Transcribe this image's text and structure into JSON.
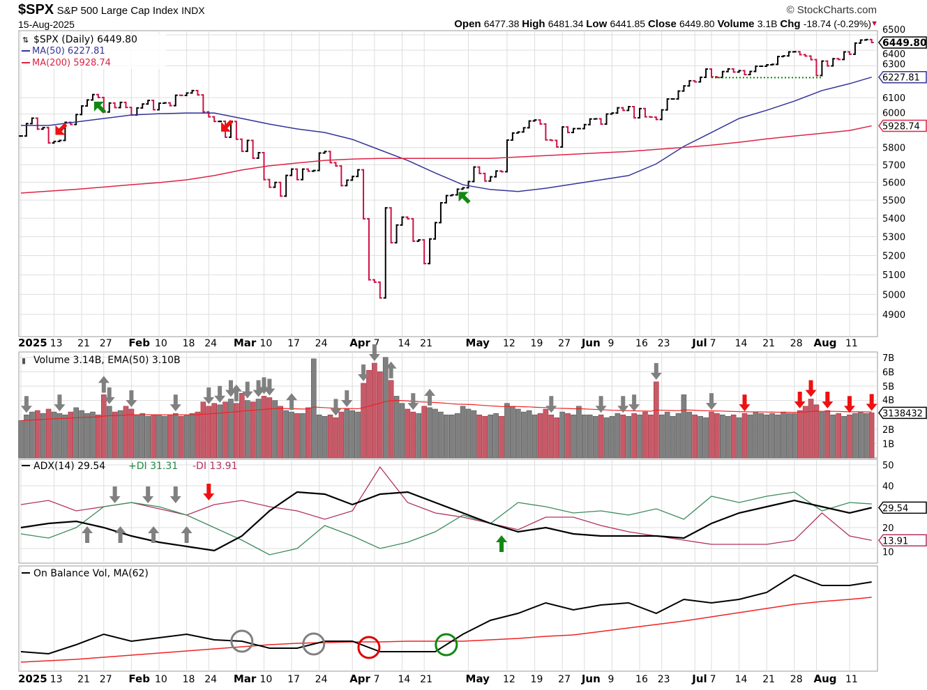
{
  "header": {
    "symbol": "$SPX",
    "name": "S&P 500 Large Cap Index",
    "exchange": "INDX",
    "date": "15-Aug-2025",
    "ohlc_labels": [
      "Open",
      "High",
      "Low",
      "Close",
      "Volume",
      "Chg"
    ],
    "ohlc_values": [
      "6477.38",
      "6481.34",
      "6441.85",
      "6449.80",
      "3.1B",
      "-18.74 (-0.29%)"
    ],
    "copyright": "© StockCharts.com",
    "chg_color": "#cc0033"
  },
  "legend": {
    "price": "$SPX (Daily) 6449.80",
    "ma50": "MA(50) 6227.81",
    "ma200": "MA(200) 5928.74",
    "volume": "Volume 3.14B, EMA(50) 3.10B",
    "adx": "ADX(14) 29.54",
    "pdi": "+DI 31.31",
    "mdi": "-DI 13.91",
    "obv": "On Balance Vol, MA(62)"
  },
  "tags": {
    "price": "6449.80",
    "ma50": "6227.81",
    "ma200": "5928.74",
    "volume": "3138432",
    "adx": "29.54",
    "mdi": "13.91"
  },
  "colors": {
    "up": "#000000",
    "down": "#cc1144",
    "ma50": "#33339a",
    "ma200": "#dd2244",
    "vol_up": "#808080",
    "vol_down": "#c85a68",
    "adx": "#000000",
    "pdi": "#3a8a5a",
    "mdi": "#b03060",
    "obv": "#000000",
    "obv_ma": "#ee2222",
    "support": "#008800"
  },
  "chart_data": [
    {
      "type": "ohlc",
      "title": "$SPX (Daily)",
      "scale": "log",
      "ylim": [
        4850,
        6550
      ],
      "grid": true,
      "yticks": [
        6500,
        6400,
        6300,
        6100,
        6000,
        5800,
        5700,
        5600,
        5500,
        5400,
        5300,
        5200,
        5100,
        5000,
        4900
      ],
      "trading_days": {
        "01": [
          2,
          3,
          6,
          7,
          8,
          10,
          13,
          14,
          15,
          16,
          17,
          21,
          22,
          23,
          24,
          27,
          28,
          29,
          30,
          31
        ],
        "02": [
          3,
          4,
          5,
          6,
          7,
          10,
          11,
          12,
          13,
          14,
          18,
          19,
          20,
          21,
          24,
          25,
          26,
          27,
          28
        ],
        "03": [
          3,
          4,
          5,
          6,
          7,
          10,
          11,
          12,
          13,
          14,
          17,
          18,
          19,
          20,
          21,
          24,
          25,
          26,
          27,
          28,
          31
        ],
        "04": [
          1,
          2,
          3,
          4,
          7,
          8,
          9,
          10,
          11,
          14,
          15,
          16,
          17,
          21,
          22,
          23,
          24,
          25,
          28,
          29,
          30
        ],
        "05": [
          1,
          2,
          5,
          6,
          7,
          8,
          9,
          12,
          13,
          14,
          15,
          16,
          19,
          20,
          21,
          22,
          23,
          27,
          28,
          29,
          30
        ],
        "06": [
          2,
          3,
          4,
          5,
          6,
          9,
          10,
          11,
          12,
          13,
          16,
          17,
          18,
          20,
          23,
          24,
          25,
          26,
          27,
          30
        ],
        "07": [
          1,
          2,
          3,
          7,
          8,
          9,
          10,
          11,
          14,
          15,
          16,
          17,
          18,
          21,
          22,
          23,
          24,
          25,
          28,
          29,
          30,
          31
        ],
        "08": [
          1,
          4,
          5,
          6,
          7,
          8,
          11,
          12,
          13,
          14,
          15
        ]
      },
      "close": [
        5868,
        5942,
        5975,
        5909,
        5918,
        5827,
        5836,
        5842,
        5950,
        5937,
        5997,
        6049,
        6086,
        6119,
        6101,
        6012,
        6067,
        6039,
        6071,
        6040,
        5994,
        6037,
        6061,
        6083,
        6026,
        6066,
        6068,
        6051,
        6115,
        6114,
        6129,
        6144,
        6117,
        6013,
        5983,
        5955,
        5956,
        5861,
        5955,
        5849,
        5778,
        5842,
        5738,
        5770,
        5615,
        5572,
        5599,
        5522,
        5639,
        5675,
        5615,
        5675,
        5663,
        5667,
        5768,
        5777,
        5712,
        5693,
        5581,
        5612,
        5633,
        5671,
        5397,
        5074,
        5062,
        4982,
        5457,
        5268,
        5363,
        5406,
        5397,
        5276,
        5283,
        5158,
        5288,
        5376,
        5485,
        5525,
        5529,
        5561,
        5569,
        5604,
        5687,
        5650,
        5607,
        5631,
        5664,
        5660,
        5844,
        5886,
        5892,
        5917,
        5958,
        5964,
        5940,
        5845,
        5842,
        5803,
        5922,
        5889,
        5912,
        5912,
        5936,
        5970,
        5971,
        5939,
        6000,
        6006,
        6038,
        6022,
        6045,
        5977,
        6033,
        5983,
        5981,
        5967,
        6025,
        6092,
        6092,
        6141,
        6173,
        6205,
        6198,
        6227,
        6279,
        6230,
        6226,
        6263,
        6280,
        6260,
        6269,
        6244,
        6264,
        6297,
        6297,
        6306,
        6309,
        6359,
        6363,
        6389,
        6390,
        6371,
        6362,
        6339,
        6238,
        6330,
        6299,
        6345,
        6340,
        6389,
        6374,
        6446,
        6466,
        6469,
        6449.8
      ],
      "ma50_sampled": [
        5931,
        5931,
        5952,
        5973,
        5994,
        6002,
        6006,
        6006,
        5973,
        5939,
        5910,
        5889,
        5848,
        5786,
        5725,
        5653,
        5586,
        5559,
        5548,
        5566,
        5590,
        5614,
        5638,
        5705,
        5807,
        5889,
        5973,
        6023,
        6079,
        6144,
        6187,
        6227.81
      ],
      "ma200_sampled": [
        5539,
        5550,
        5560,
        5573,
        5586,
        5598,
        5614,
        5638,
        5670,
        5694,
        5710,
        5725,
        5733,
        5737,
        5737,
        5737,
        5737,
        5737,
        5745,
        5753,
        5761,
        5769,
        5777,
        5789,
        5801,
        5814,
        5831,
        5851,
        5868,
        5884,
        5901,
        5928.74
      ],
      "support_line": {
        "from": "07-07",
        "to": "08-04",
        "value": 6225
      },
      "arrows": [
        {
          "date": "01-14",
          "color": "red",
          "dir": "down-left"
        },
        {
          "date": "01-24",
          "color": "green",
          "dir": "up-left"
        },
        {
          "date": "02-27",
          "color": "red",
          "dir": "down-left"
        },
        {
          "date": "04-30",
          "color": "green",
          "dir": "up-left"
        }
      ]
    },
    {
      "type": "bar",
      "title": "Volume",
      "unit": "B",
      "yticks": [
        {
          "v": 7,
          "l": "7B"
        },
        {
          "v": 6,
          "l": "6B"
        },
        {
          "v": 5,
          "l": "5B"
        },
        {
          "v": 4,
          "l": "4B"
        },
        {
          "v": 2,
          "l": "2B"
        },
        {
          "v": 1,
          "l": "1B"
        }
      ],
      "values": [
        2.6,
        3.0,
        3.2,
        3.3,
        3.1,
        3.4,
        3.2,
        3.1,
        3.0,
        3.2,
        3.5,
        3.3,
        3.1,
        3.2,
        3.0,
        4.4,
        3.6,
        3.2,
        3.3,
        3.6,
        3.4,
        3.0,
        3.1,
        2.9,
        3.0,
        3.0,
        2.9,
        3.0,
        3.1,
        2.9,
        3.0,
        3.1,
        3.2,
        3.9,
        3.6,
        3.8,
        3.7,
        3.9,
        4.1,
        3.8,
        4.5,
        4.0,
        3.9,
        4.1,
        4.3,
        4.2,
        4.0,
        3.6,
        3.3,
        3.2,
        3.1,
        3.1,
        3.5,
        6.9,
        3.0,
        2.9,
        3.0,
        2.8,
        3.2,
        3.4,
        3.3,
        3.2,
        5.2,
        6.1,
        6.6,
        6.0,
        7.0,
        5.4,
        4.3,
        3.8,
        3.4,
        3.2,
        3.1,
        3.6,
        3.5,
        3.4,
        3.2,
        3.0,
        3.0,
        3.1,
        3.6,
        3.4,
        3.3,
        3.0,
        2.9,
        3.0,
        3.1,
        2.9,
        3.8,
        3.6,
        3.4,
        3.2,
        3.3,
        3.0,
        3.1,
        3.4,
        3.0,
        2.8,
        3.2,
        3.1,
        3.0,
        3.6,
        3.0,
        3.0,
        2.9,
        3.0,
        2.8,
        2.9,
        3.1,
        3.0,
        2.9,
        3.1,
        3.0,
        3.2,
        3.0,
        5.3,
        3.0,
        3.2,
        2.9,
        3.1,
        4.4,
        3.2,
        3.0,
        2.9,
        2.8,
        3.2,
        3.1,
        3.0,
        2.9,
        3.0,
        2.8,
        3.1,
        3.0,
        3.2,
        3.1,
        3.0,
        3.1,
        3.0,
        3.2,
        3.1,
        3.1,
        3.3,
        3.6,
        4.1,
        3.7,
        3.2,
        3.3,
        3.0,
        3.1,
        2.9,
        3.0,
        3.1,
        3.2,
        3.1,
        3.14
      ],
      "arrows": [
        {
          "date": "01-03",
          "color": "gray",
          "dir": "down"
        },
        {
          "date": "01-14",
          "color": "gray",
          "dir": "down"
        },
        {
          "date": "01-28",
          "color": "gray",
          "dir": "down"
        },
        {
          "date": "02-03",
          "color": "gray",
          "dir": "down"
        },
        {
          "date": "02-13",
          "color": "gray",
          "dir": "down"
        },
        {
          "date": "02-24",
          "color": "gray",
          "dir": "down"
        },
        {
          "date": "02-26",
          "color": "gray",
          "dir": "down"
        },
        {
          "date": "02-28",
          "color": "gray",
          "dir": "down"
        },
        {
          "date": "03-05",
          "color": "gray",
          "dir": "down"
        },
        {
          "date": "03-07",
          "color": "gray",
          "dir": "down"
        },
        {
          "date": "03-10",
          "color": "gray",
          "dir": "down"
        },
        {
          "date": "03-11",
          "color": "gray",
          "dir": "down"
        },
        {
          "date": "03-27",
          "color": "gray",
          "dir": "down"
        },
        {
          "date": "03-31",
          "color": "gray",
          "dir": "down"
        },
        {
          "date": "04-03",
          "color": "gray",
          "dir": "down"
        },
        {
          "date": "04-07",
          "color": "gray",
          "dir": "down"
        },
        {
          "date": "04-16",
          "color": "gray",
          "dir": "down"
        },
        {
          "date": "05-22",
          "color": "gray",
          "dir": "down"
        },
        {
          "date": "06-05",
          "color": "gray",
          "dir": "down"
        },
        {
          "date": "06-11",
          "color": "gray",
          "dir": "down"
        },
        {
          "date": "06-13",
          "color": "gray",
          "dir": "down"
        },
        {
          "date": "06-20",
          "color": "gray",
          "dir": "down"
        },
        {
          "date": "07-07",
          "color": "gray",
          "dir": "down"
        },
        {
          "date": "01-27",
          "color": "gray",
          "dir": "up"
        },
        {
          "date": "03-03",
          "color": "gray",
          "dir": "up"
        },
        {
          "date": "03-17",
          "color": "gray",
          "dir": "up"
        },
        {
          "date": "04-10",
          "color": "gray",
          "dir": "up"
        },
        {
          "date": "04-22",
          "color": "gray",
          "dir": "up"
        },
        {
          "date": "07-15",
          "color": "red",
          "dir": "down"
        },
        {
          "date": "07-29",
          "color": "red",
          "dir": "down"
        },
        {
          "date": "07-31",
          "color": "red",
          "dir": "down"
        },
        {
          "date": "08-05",
          "color": "red",
          "dir": "down"
        },
        {
          "date": "08-11",
          "color": "red",
          "dir": "down"
        },
        {
          "date": "08-15",
          "color": "red",
          "dir": "down"
        }
      ]
    },
    {
      "type": "line",
      "title": "ADX(14)",
      "yticks": [
        50,
        40,
        20,
        10
      ],
      "ylim": [
        0,
        55
      ],
      "series": [
        {
          "name": "ADX(14)",
          "values": [
            20,
            22,
            23,
            20,
            16,
            13,
            11,
            9,
            16,
            28,
            37,
            36,
            31,
            36,
            37,
            32,
            27,
            22,
            18,
            20,
            17,
            16,
            16,
            16,
            15,
            22,
            27,
            30,
            33,
            30,
            27,
            29.54
          ]
        },
        {
          "name": "+DI",
          "values": [
            17,
            15,
            20,
            30,
            32,
            30,
            26,
            20,
            14,
            7,
            10,
            21,
            16,
            10,
            13,
            18,
            26,
            22,
            32,
            30,
            27,
            28,
            26,
            29,
            24,
            35,
            32,
            35,
            37,
            28,
            32,
            31.31
          ]
        },
        {
          "name": "-DI",
          "values": [
            31,
            33,
            28,
            30,
            32,
            29,
            26,
            31,
            33,
            30,
            28,
            24,
            28,
            49,
            32,
            27,
            25,
            22,
            19,
            25,
            25,
            21,
            18,
            16,
            14,
            12,
            12,
            12,
            14,
            27,
            16,
            13.91
          ]
        }
      ],
      "arrows": [
        {
          "date": "01-22",
          "color": "gray",
          "dir": "up"
        },
        {
          "date": "01-30",
          "color": "gray",
          "dir": "up"
        },
        {
          "date": "02-07",
          "color": "gray",
          "dir": "up"
        },
        {
          "date": "02-18",
          "color": "gray",
          "dir": "up"
        },
        {
          "date": "01-29",
          "color": "gray",
          "dir": "down"
        },
        {
          "date": "02-06",
          "color": "gray",
          "dir": "down"
        },
        {
          "date": "02-13",
          "color": "gray",
          "dir": "down"
        },
        {
          "date": "02-24",
          "color": "red",
          "dir": "down"
        },
        {
          "date": "05-09",
          "color": "green",
          "dir": "up"
        }
      ]
    },
    {
      "type": "line",
      "title": "On Balance Vol, MA(62)",
      "series": [
        {
          "name": "On Balance Vol",
          "values": [
            25,
            22,
            35,
            50,
            40,
            45,
            50,
            42,
            40,
            30,
            30,
            40,
            40,
            25,
            25,
            25,
            50,
            70,
            80,
            95,
            85,
            92,
            95,
            80,
            100,
            95,
            100,
            110,
            135,
            120,
            120,
            125
          ]
        },
        {
          "name": "MA(62)",
          "values": [
            10,
            12,
            14,
            17,
            20,
            23,
            26,
            29,
            32,
            35,
            37,
            38,
            39,
            39,
            40,
            40,
            40,
            42,
            44,
            47,
            49,
            54,
            59,
            64,
            69,
            75,
            81,
            87,
            93,
            97,
            100,
            103
          ]
        }
      ],
      "circles": [
        {
          "date": "03-04",
          "color": "gray"
        },
        {
          "date": "03-21",
          "color": "gray"
        },
        {
          "date": "04-04",
          "color": "red"
        },
        {
          "date": "04-25",
          "color": "green"
        }
      ]
    }
  ],
  "xaxis": [
    {
      "d": "01-02",
      "l": "2025",
      "bold": true
    },
    {
      "d": "01-13",
      "l": "13"
    },
    {
      "d": "01-21",
      "l": "21"
    },
    {
      "d": "01-27",
      "l": "27"
    },
    {
      "d": "02-03",
      "l": "Feb",
      "bold": true
    },
    {
      "d": "02-10",
      "l": "10"
    },
    {
      "d": "02-18",
      "l": "18"
    },
    {
      "d": "02-24",
      "l": "24"
    },
    {
      "d": "03-03",
      "l": "Mar",
      "bold": true
    },
    {
      "d": "03-10",
      "l": "10"
    },
    {
      "d": "03-17",
      "l": "17"
    },
    {
      "d": "03-24",
      "l": "24"
    },
    {
      "d": "04-01",
      "l": "Apr",
      "bold": true
    },
    {
      "d": "04-07",
      "l": "7"
    },
    {
      "d": "04-14",
      "l": "14"
    },
    {
      "d": "04-21",
      "l": "21"
    },
    {
      "d": "05-01",
      "l": "May",
      "bold": true
    },
    {
      "d": "05-12",
      "l": "12"
    },
    {
      "d": "05-19",
      "l": "19"
    },
    {
      "d": "05-27",
      "l": "27"
    },
    {
      "d": "06-02",
      "l": "Jun",
      "bold": true
    },
    {
      "d": "06-09",
      "l": "9"
    },
    {
      "d": "06-16",
      "l": "16"
    },
    {
      "d": "06-23",
      "l": "23"
    },
    {
      "d": "07-01",
      "l": "Jul",
      "bold": true
    },
    {
      "d": "07-07",
      "l": "7"
    },
    {
      "d": "07-14",
      "l": "14"
    },
    {
      "d": "07-21",
      "l": "21"
    },
    {
      "d": "07-28",
      "l": "28"
    },
    {
      "d": "08-01",
      "l": "Aug",
      "bold": true
    },
    {
      "d": "08-11",
      "l": "11"
    }
  ]
}
